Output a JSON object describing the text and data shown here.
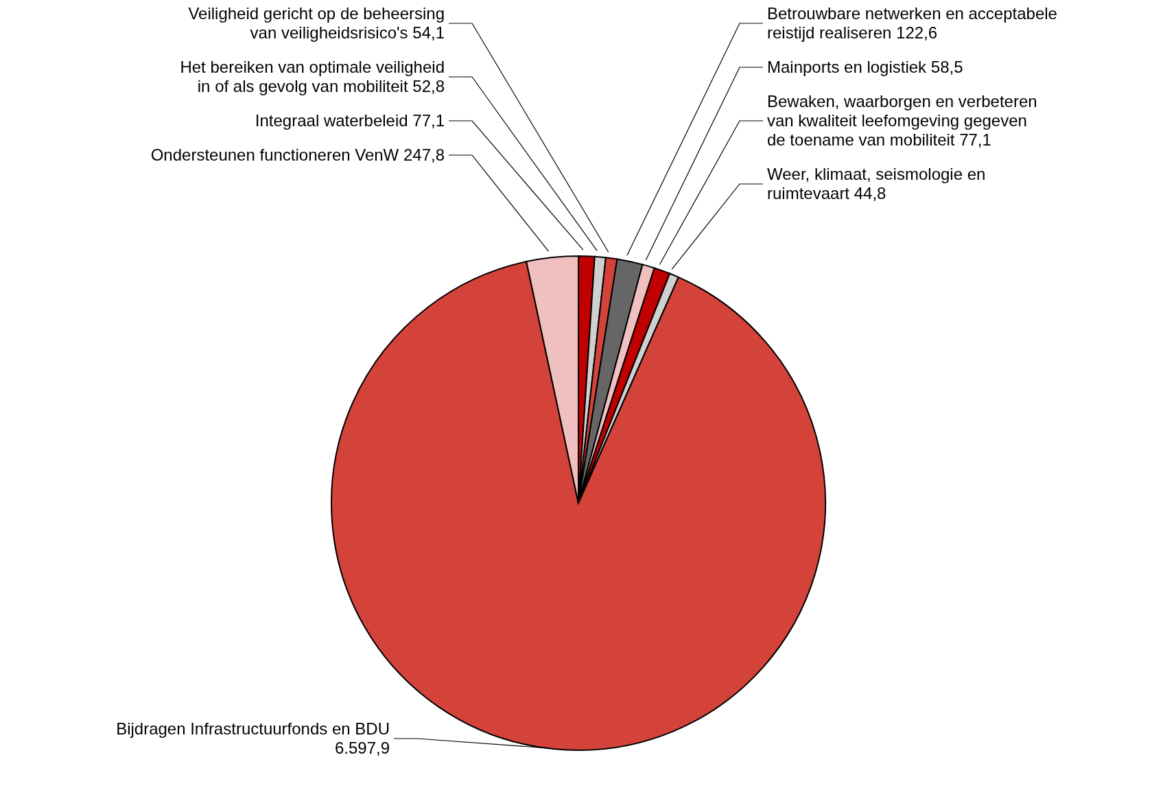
{
  "chart_data": {
    "type": "pie",
    "categories": [
      "Integraal waterbeleid",
      "Het bereiken van optimale veiligheid in of als gevolg van mobiliteit",
      "Veiligheid gericht op de beheersing van veiligheidsrisico's",
      "Betrouwbare netwerken en acceptabele reistijd realiseren",
      "Mainports en logistiek",
      "Bewaken, waarborgen en verbeteren van kwaliteit leefomgeving gegeven de toename van mobiliteit",
      "Weer, klimaat, seismologie en ruimtevaart",
      "Bijdragen Infrastructuurfonds en BDU",
      "Ondersteunen functioneren VenW"
    ],
    "values": [
      77.1,
      52.8,
      54.1,
      122.6,
      58.5,
      77.1,
      44.8,
      6597.9,
      247.8
    ],
    "colors": [
      "#c00000",
      "#d0d0d0",
      "#d4433a",
      "#666666",
      "#f0c0c0",
      "#c00000",
      "#d0d0d0",
      "#d4433a",
      "#f0c0c0"
    ],
    "value_labels": [
      "77,1",
      "52,8",
      "54,1",
      "122,6",
      "58,5",
      "77,1",
      "44,8",
      "6.597,9",
      "247,8"
    ],
    "legend": false
  }
}
